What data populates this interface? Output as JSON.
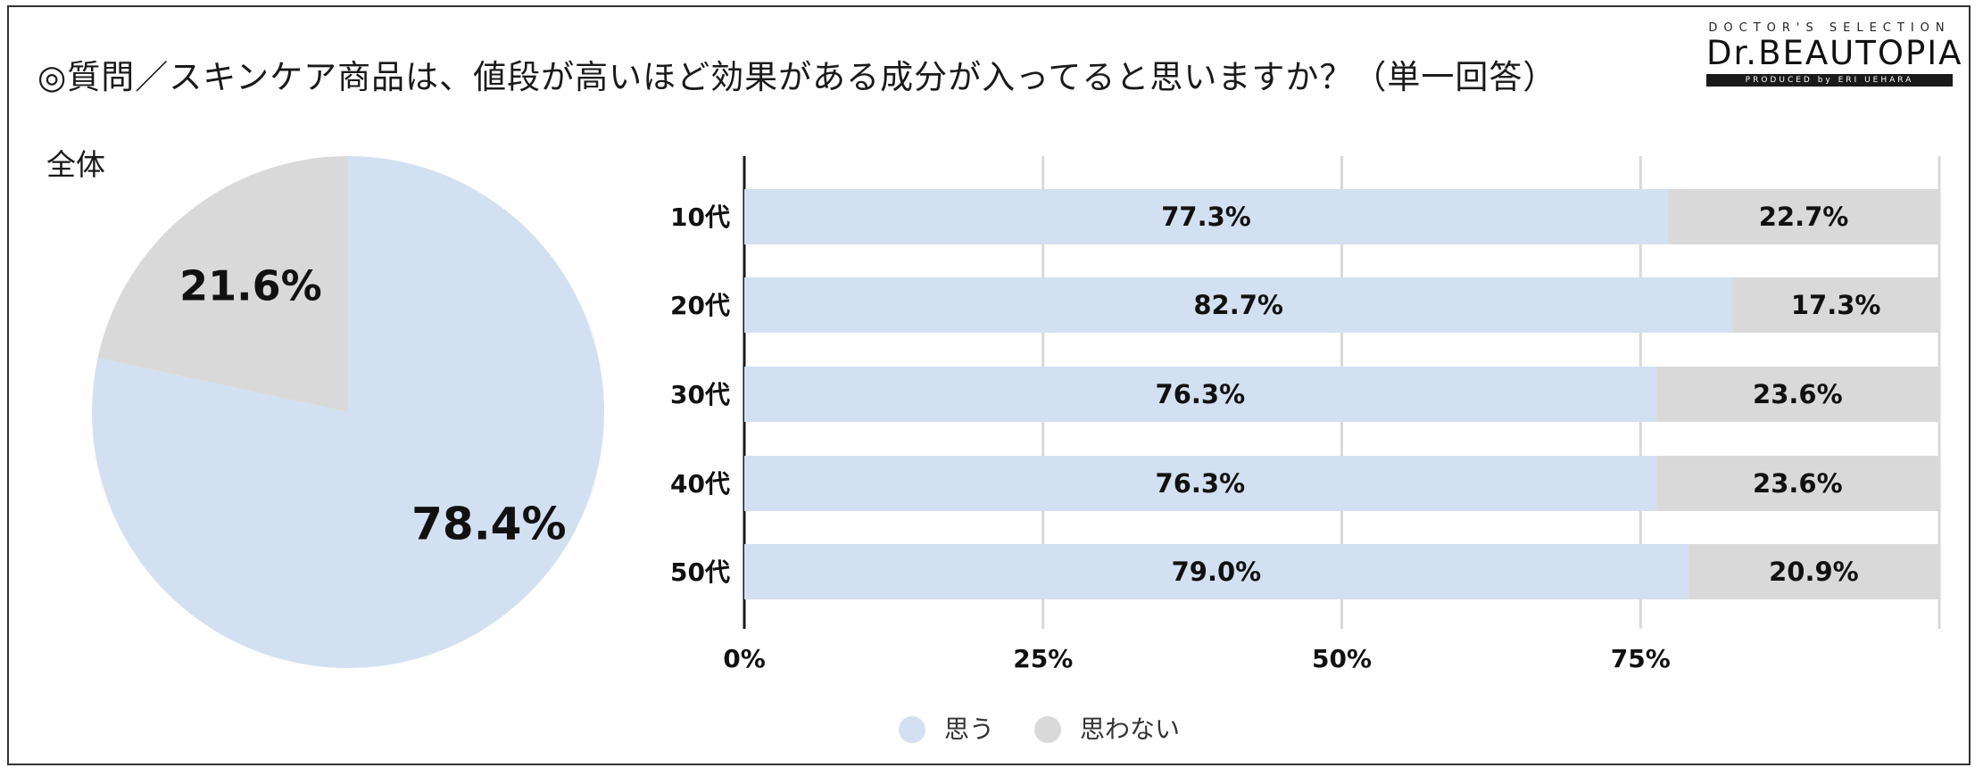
{
  "title": "◎質問／スキンケア商品は、値段が高いほど効果がある成分が入ってると思いますか？（単一回答）",
  "logo": {
    "top": "DOCTOR'S SELECTION",
    "main": "Dr.BEAUTOPIA",
    "sub": "PRODUCED by ERI UEHARA"
  },
  "colors": {
    "agree": "#d3e0f1",
    "disagree": "#d9d9d9",
    "grid": "#d9d9d9",
    "axis": "#1a1a1a"
  },
  "chart_data": [
    {
      "type": "pie",
      "title": "全体",
      "slices": [
        {
          "label": "思う",
          "value": 78.4,
          "display": "78.4%"
        },
        {
          "label": "思わない",
          "value": 21.6,
          "display": "21.6%"
        }
      ]
    },
    {
      "type": "bar",
      "orientation": "horizontal",
      "stacked": true,
      "categories": [
        "10代",
        "20代",
        "30代",
        "40代",
        "50代"
      ],
      "series": [
        {
          "name": "思う",
          "values": [
            77.3,
            82.7,
            76.3,
            76.3,
            79.0
          ],
          "labels": [
            "77.3%",
            "82.7%",
            "76.3%",
            "76.3%",
            "79.0%"
          ]
        },
        {
          "name": "思わない",
          "values": [
            22.7,
            17.3,
            23.6,
            23.6,
            20.9
          ],
          "labels": [
            "22.7%",
            "17.3%",
            "23.6%",
            "23.6%",
            "20.9%"
          ]
        }
      ],
      "xlim": [
        0,
        100
      ],
      "xticks": [
        "0%",
        "25%",
        "50%",
        "75%"
      ],
      "grid": true,
      "legend": "bottom"
    }
  ]
}
